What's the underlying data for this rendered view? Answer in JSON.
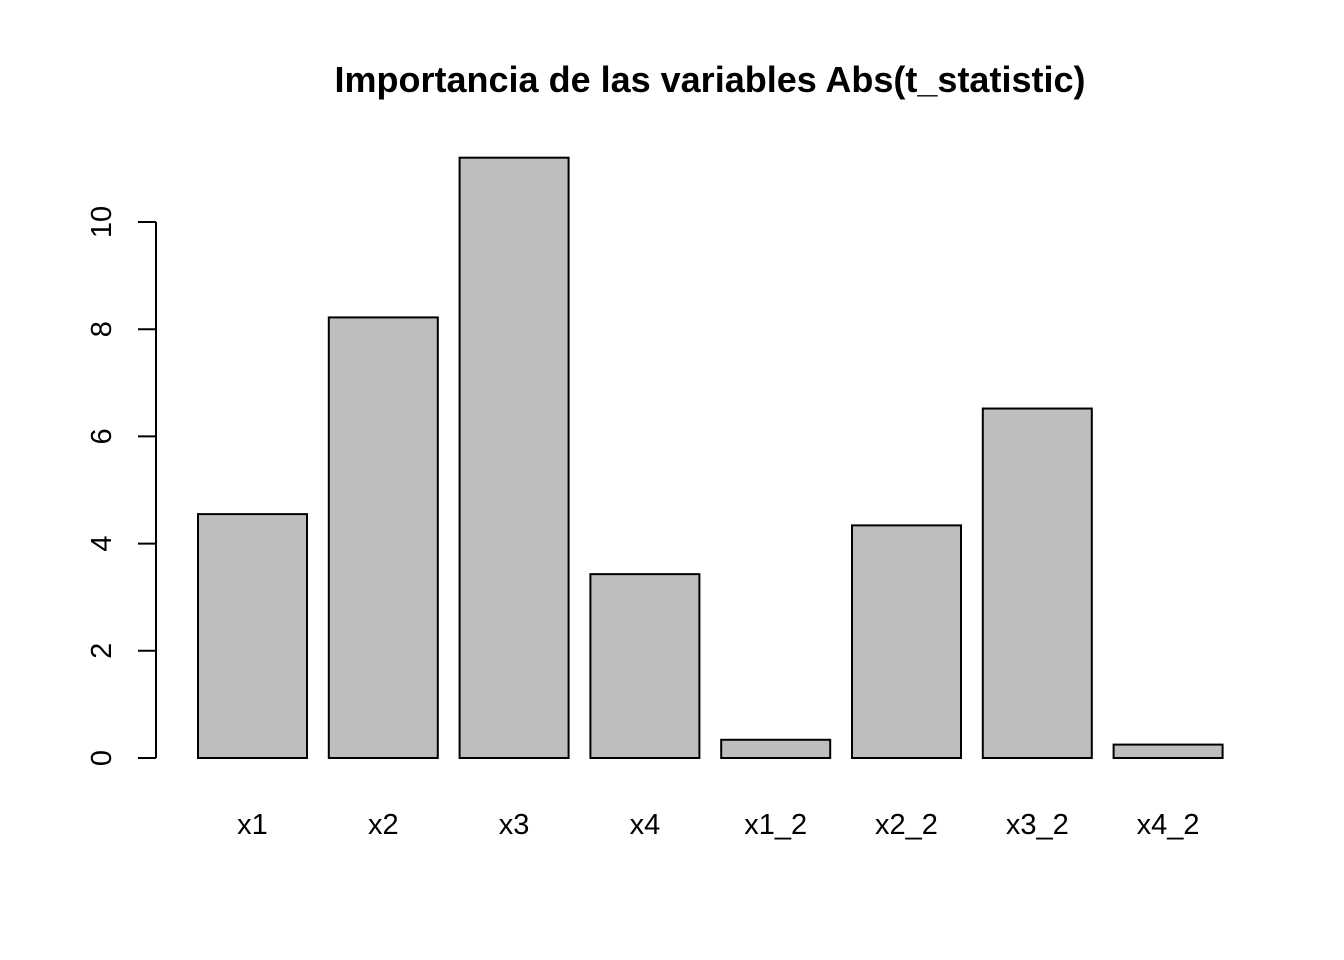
{
  "chart_data": {
    "type": "bar",
    "title": "Importancia de las variables Abs(t_statistic)",
    "xlabel": "",
    "ylabel": "",
    "categories": [
      "x1",
      "x2",
      "x3",
      "x4",
      "x1_2",
      "x2_2",
      "x3_2",
      "x4_2"
    ],
    "values": [
      4.55,
      8.22,
      11.2,
      3.43,
      0.34,
      4.34,
      6.52,
      0.25
    ],
    "ylim": [
      0,
      11.2
    ],
    "yticks": [
      0,
      2,
      4,
      6,
      8,
      10
    ],
    "grid": false,
    "legend": "none",
    "colors": {
      "bar_fill": "#bebebe",
      "bar_stroke": "#000000",
      "text": "#000000",
      "background": "#ffffff"
    }
  }
}
